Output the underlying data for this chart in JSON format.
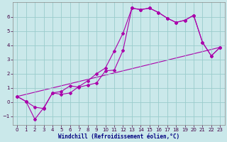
{
  "xlabel": "Windchill (Refroidissement éolien,°C)",
  "bg_color": "#cae8ea",
  "line_color": "#aa00aa",
  "grid_color": "#99cccc",
  "xlim": [
    -0.5,
    23.5
  ],
  "ylim": [
    -1.6,
    7.0
  ],
  "yticks": [
    -1,
    0,
    1,
    2,
    3,
    4,
    5,
    6
  ],
  "xticks": [
    0,
    1,
    2,
    3,
    4,
    5,
    6,
    7,
    8,
    9,
    10,
    11,
    12,
    13,
    14,
    15,
    16,
    17,
    18,
    19,
    20,
    21,
    22,
    23
  ],
  "series1_x": [
    0,
    1,
    2,
    3,
    4,
    5,
    6,
    7,
    8,
    9,
    10,
    11,
    12,
    13,
    14,
    15,
    16,
    17,
    18,
    19,
    20,
    21,
    22,
    23
  ],
  "series1_y": [
    0.4,
    0.05,
    -0.35,
    -0.45,
    0.65,
    0.75,
    1.15,
    1.05,
    1.2,
    1.35,
    2.2,
    2.25,
    3.65,
    6.6,
    6.5,
    6.6,
    6.3,
    5.9,
    5.6,
    5.75,
    6.1,
    4.2,
    3.25,
    3.85
  ],
  "series2_x": [
    0,
    1,
    2,
    3,
    4,
    5,
    6,
    7,
    8,
    9,
    10,
    11,
    12,
    13,
    14,
    15,
    16,
    17,
    18,
    19,
    20,
    21,
    22,
    23
  ],
  "series2_y": [
    0.4,
    0.05,
    -1.2,
    -0.4,
    0.65,
    0.55,
    0.65,
    1.1,
    1.5,
    2.0,
    2.4,
    3.6,
    4.85,
    6.6,
    6.5,
    6.6,
    6.3,
    5.9,
    5.6,
    5.75,
    6.1,
    4.2,
    3.25,
    3.85
  ],
  "series3_x": [
    0,
    23
  ],
  "series3_y": [
    0.4,
    3.85
  ],
  "marker": "D",
  "marker_size": 2.0,
  "tick_fontsize": 5.0,
  "xlabel_fontsize": 5.5
}
